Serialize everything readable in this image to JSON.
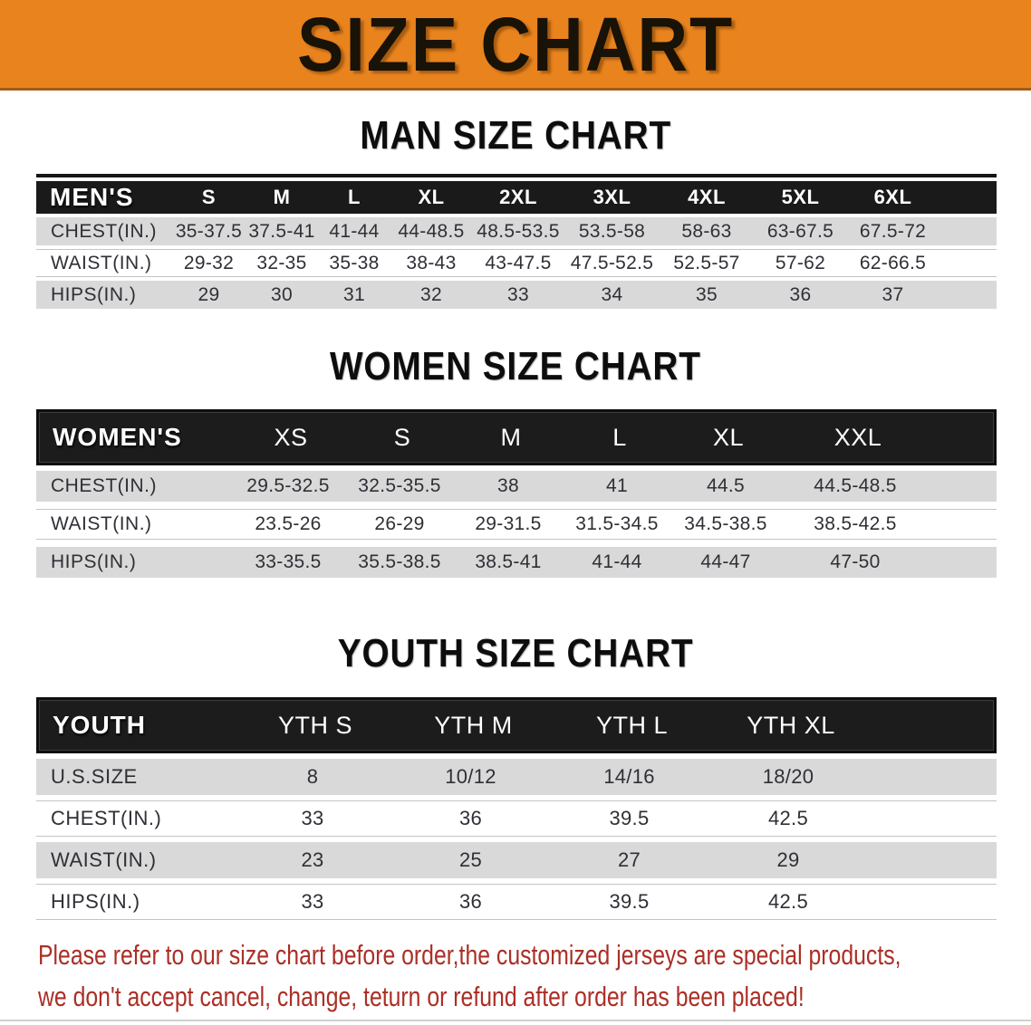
{
  "banner": {
    "title": "SIZE CHART"
  },
  "colors": {
    "banner_orange": "#E8831E",
    "header_bar_black": "#1a1a1a",
    "row_gray": "#D9D9D9",
    "footer_red": "#AB2F26"
  },
  "sections": [
    {
      "heading": "MAN SIZE CHART",
      "table": {
        "label": "MEN'S",
        "columns": [
          "S",
          "M",
          "L",
          "XL",
          "2XL",
          "3XL",
          "4XL",
          "5XL",
          "6XL"
        ],
        "rows": [
          {
            "label": "CHEST(IN.)",
            "values": [
              "35-37.5",
              "37.5-41",
              "41-44",
              "44-48.5",
              "48.5-53.5",
              "53.5-58",
              "58-63",
              "63-67.5",
              "67.5-72"
            ]
          },
          {
            "label": "WAIST(IN.)",
            "values": [
              "29-32",
              "32-35",
              "35-38",
              "38-43",
              "43-47.5",
              "47.5-52.5",
              "52.5-57",
              "57-62",
              "62-66.5"
            ]
          },
          {
            "label": "HIPS(IN.)",
            "values": [
              "29",
              "30",
              "31",
              "32",
              "33",
              "34",
              "35",
              "36",
              "37"
            ]
          }
        ]
      }
    },
    {
      "heading": "WOMEN SIZE CHART",
      "table": {
        "label": "WOMEN'S",
        "columns": [
          "XS",
          "S",
          "M",
          "L",
          "XL",
          "XXL"
        ],
        "rows": [
          {
            "label": "CHEST(IN.)",
            "values": [
              "29.5-32.5",
              "32.5-35.5",
              "38",
              "41",
              "44.5",
              "44.5-48.5"
            ]
          },
          {
            "label": "WAIST(IN.)",
            "values": [
              "23.5-26",
              "26-29",
              "29-31.5",
              "31.5-34.5",
              "34.5-38.5",
              "38.5-42.5"
            ]
          },
          {
            "label": "HIPS(IN.)",
            "values": [
              "33-35.5",
              "35.5-38.5",
              "38.5-41",
              "41-44",
              "44-47",
              "47-50"
            ]
          }
        ]
      }
    },
    {
      "heading": "YOUTH SIZE CHART",
      "table": {
        "label": "YOUTH",
        "columns": [
          "YTH S",
          "YTH M",
          "YTH L",
          "YTH XL"
        ],
        "rows": [
          {
            "label": "U.S.SIZE",
            "values": [
              "8",
              "10/12",
              "14/16",
              "18/20"
            ]
          },
          {
            "label": "CHEST(IN.)",
            "values": [
              "33",
              "36",
              "39.5",
              "42.5"
            ]
          },
          {
            "label": "WAIST(IN.)",
            "values": [
              "23",
              "25",
              "27",
              "29"
            ]
          },
          {
            "label": "HIPS(IN.)",
            "values": [
              "33",
              "36",
              "39.5",
              "42.5"
            ]
          }
        ]
      }
    }
  ],
  "footer": {
    "line1": "Please refer to our size chart before order,the customized jerseys are special products,",
    "line2": "we don't accept cancel, change, teturn or refund after order has been placed!"
  }
}
